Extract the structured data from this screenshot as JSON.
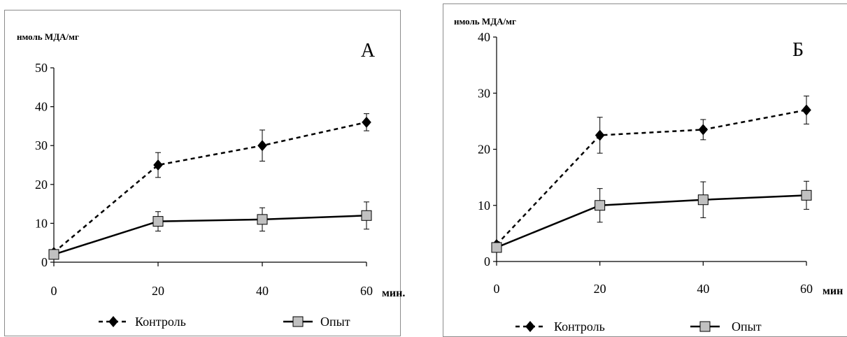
{
  "chart_data": [
    {
      "type": "line",
      "panel_label": "А",
      "ylabel": "нмоль МДА/мг",
      "xunit": "мин.",
      "x": [
        0,
        20,
        40,
        60
      ],
      "xticks": [
        "0",
        "20",
        "40",
        "60"
      ],
      "ylim": [
        0,
        50
      ],
      "yticks": [
        "0",
        "10",
        "20",
        "30",
        "40",
        "50"
      ],
      "grid": false,
      "legend": "bottom",
      "series": [
        {
          "name": "Контроль",
          "style": "dashed",
          "marker": "diamond",
          "color": "#000000",
          "values": [
            2.5,
            25,
            30,
            36
          ],
          "errors": [
            0,
            3.2,
            4,
            2.2
          ]
        },
        {
          "name": "Опыт",
          "style": "solid",
          "marker": "square",
          "color": "#000000",
          "marker_fill": "#c0c0c0",
          "values": [
            2,
            10.5,
            11,
            12
          ],
          "errors": [
            0,
            2.5,
            3,
            3.5
          ]
        }
      ]
    },
    {
      "type": "line",
      "panel_label": "Б",
      "ylabel": "нмоль МДА/мг",
      "xunit": "мин",
      "x": [
        0,
        20,
        40,
        60
      ],
      "xticks": [
        "0",
        "20",
        "40",
        "60"
      ],
      "ylim": [
        0,
        40
      ],
      "yticks": [
        "0",
        "10",
        "20",
        "30",
        "40"
      ],
      "grid": false,
      "legend": "bottom",
      "series": [
        {
          "name": "Контроль",
          "style": "dashed",
          "marker": "diamond",
          "color": "#000000",
          "values": [
            3,
            22.5,
            23.5,
            27
          ],
          "errors": [
            0,
            3.2,
            1.8,
            2.5
          ]
        },
        {
          "name": "Опыт",
          "style": "solid",
          "marker": "square",
          "color": "#000000",
          "marker_fill": "#c0c0c0",
          "values": [
            2.5,
            10,
            11,
            11.8
          ],
          "errors": [
            0,
            3,
            3.2,
            2.5
          ]
        }
      ]
    }
  ]
}
